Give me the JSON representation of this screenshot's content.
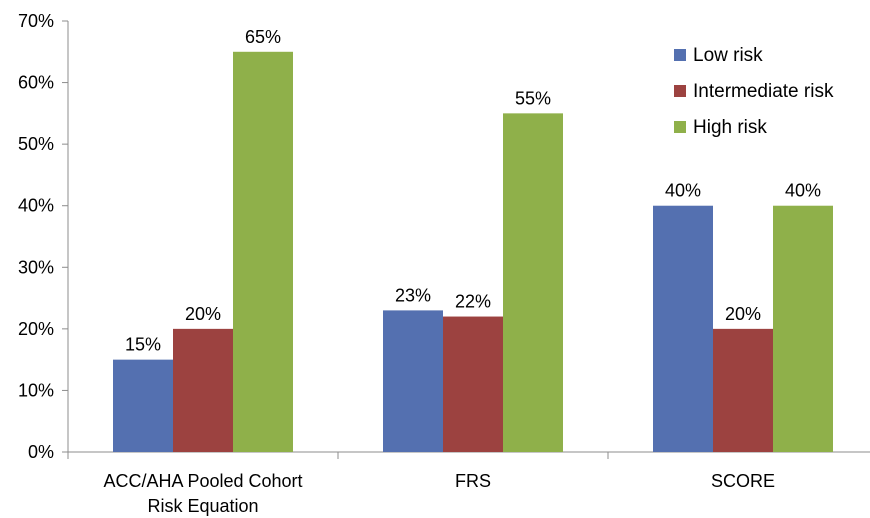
{
  "chart_data": {
    "type": "bar",
    "categories": [
      [
        "ACC/AHA Pooled Cohort",
        "Risk Equation"
      ],
      [
        "FRS"
      ],
      [
        "SCORE"
      ]
    ],
    "series": [
      {
        "name": "Low risk",
        "color": "#5470b0",
        "values": [
          15,
          23,
          40
        ],
        "labels": [
          "15%",
          "23%",
          "40%"
        ]
      },
      {
        "name": "Intermediate risk",
        "color": "#9c4240",
        "values": [
          20,
          22,
          20
        ],
        "labels": [
          "20%",
          "22%",
          "20%"
        ]
      },
      {
        "name": "High risk",
        "color": "#8fb04a",
        "values": [
          65,
          55,
          40
        ],
        "labels": [
          "65%",
          "55%",
          "40%"
        ]
      }
    ],
    "ylim": [
      0,
      70
    ],
    "yticks": [
      {
        "value": 0,
        "label": "0%"
      },
      {
        "value": 10,
        "label": "10%"
      },
      {
        "value": 20,
        "label": "20%"
      },
      {
        "value": 30,
        "label": "30%"
      },
      {
        "value": 40,
        "label": "40%"
      },
      {
        "value": 50,
        "label": "50%"
      },
      {
        "value": 60,
        "label": "60%"
      },
      {
        "value": 70,
        "label": "70%"
      }
    ],
    "grid": false,
    "legend_position": "top-right",
    "title": "",
    "xlabel": "",
    "ylabel": ""
  }
}
